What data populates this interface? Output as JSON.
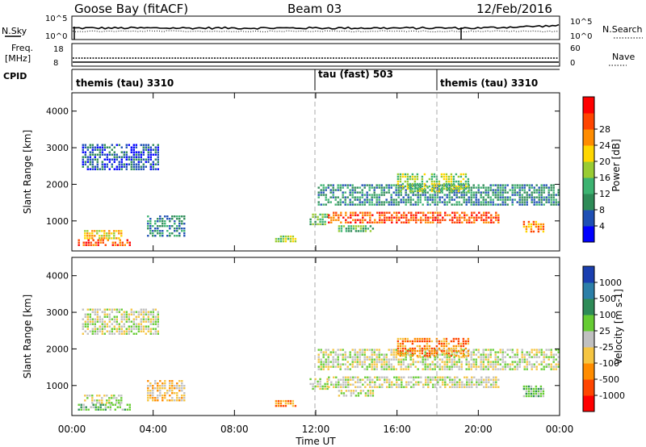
{
  "header": {
    "station": "Goose Bay (fitACF)",
    "beam": "Beam 03",
    "date": "12/Feb/2016"
  },
  "side_labels": {
    "nsky": "N.Sky",
    "freq_top": "Freq.",
    "freq_unit": "[MHz]",
    "cpid": "CPID",
    "nsearch": "N.Search",
    "nave": "Nave"
  },
  "noise_panel": {
    "left_ticks": [
      "10^5",
      "10^0"
    ],
    "right_ticks": [
      "10^5",
      "10^0"
    ]
  },
  "freq_panel": {
    "left_ticks": [
      "18",
      "8"
    ],
    "right_ticks": [
      "60",
      "0"
    ]
  },
  "cpid_segments": [
    {
      "label": "themis (tau) 3310",
      "start_hour": 0
    },
    {
      "label": "tau (fast) 503",
      "start_hour": 12
    },
    {
      "label": "themis (tau) 3310",
      "start_hour": 18
    }
  ],
  "x_axis": {
    "ticks": [
      "00:00",
      "04:00",
      "08:00",
      "12:00",
      "16:00",
      "20:00",
      "00:00"
    ],
    "label": "Time UT"
  },
  "power_panel": {
    "ylabel": "Slant Range [km]",
    "y_ticks": [
      "1000",
      "2000",
      "3000",
      "4000"
    ],
    "colorbar_label": "Power [dB]",
    "colorbar_ticks": [
      "4",
      "8",
      "12",
      "16",
      "20",
      "24",
      "28"
    ],
    "colors": [
      "#0000ff",
      "#1e4fb4",
      "#2e8b57",
      "#3cb371",
      "#99cc33",
      "#ffd700",
      "#ff8c00",
      "#ff4500",
      "#ff0000"
    ]
  },
  "velocity_panel": {
    "ylabel": "Slant Range [km]",
    "y_ticks": [
      "1000",
      "2000",
      "3000",
      "4000"
    ],
    "colorbar_label": "Velocity [m s-1]",
    "colorbar_ticks": [
      "1000",
      "500",
      "100",
      "25",
      "-25",
      "-100",
      "-500",
      "-1000"
    ],
    "colors": [
      "#1a3fb0",
      "#2c7fa8",
      "#2e8b57",
      "#66cc33",
      "#c0c0c0",
      "#f5c542",
      "#ff8c00",
      "#ff4500",
      "#ff0000"
    ]
  },
  "chart_data": {
    "type": "heatmap",
    "x_unit": "hour UT",
    "xlim": [
      0,
      24
    ],
    "ylim": [
      180,
      4500
    ],
    "power_bands": [
      {
        "start": 0.3,
        "end": 2.9,
        "range": [
          350,
          500
        ],
        "level": 7
      },
      {
        "start": 0.6,
        "end": 2.4,
        "range": [
          550,
          750
        ],
        "level": 5
      },
      {
        "start": 0.5,
        "end": 4.3,
        "range": [
          2400,
          3100
        ],
        "level": 1
      },
      {
        "start": 3.7,
        "end": 5.6,
        "range": [
          620,
          1150
        ],
        "level": 2
      },
      {
        "start": 10.0,
        "end": 11.0,
        "range": [
          450,
          600
        ],
        "level": 4
      },
      {
        "start": 11.7,
        "end": 12.6,
        "range": [
          900,
          1200
        ],
        "level": 3
      },
      {
        "start": 12.1,
        "end": 24.0,
        "range": [
          1450,
          2000
        ],
        "level": 2
      },
      {
        "start": 12.6,
        "end": 21.0,
        "range": [
          950,
          1250
        ],
        "level": 7
      },
      {
        "start": 13.1,
        "end": 14.8,
        "range": [
          700,
          880
        ],
        "level": 3
      },
      {
        "start": 16.0,
        "end": 19.5,
        "range": [
          1800,
          2300
        ],
        "level": 4
      },
      {
        "start": 22.2,
        "end": 23.2,
        "range": [
          700,
          1000
        ],
        "level": 6
      }
    ],
    "velocity_bands": [
      {
        "start": 0.3,
        "end": 2.9,
        "range": [
          350,
          500
        ],
        "level": 3
      },
      {
        "start": 0.6,
        "end": 2.4,
        "range": [
          550,
          750
        ],
        "level": 4
      },
      {
        "start": 0.5,
        "end": 4.3,
        "range": [
          2400,
          3100
        ],
        "level": 4
      },
      {
        "start": 3.7,
        "end": 5.6,
        "range": [
          620,
          1150
        ],
        "level": 5
      },
      {
        "start": 10.0,
        "end": 11.0,
        "range": [
          450,
          600
        ],
        "level": 6
      },
      {
        "start": 11.7,
        "end": 12.6,
        "range": [
          900,
          1200
        ],
        "level": 4
      },
      {
        "start": 12.1,
        "end": 24.0,
        "range": [
          1450,
          2000
        ],
        "level": 4
      },
      {
        "start": 12.6,
        "end": 21.0,
        "range": [
          950,
          1250
        ],
        "level": 4
      },
      {
        "start": 13.1,
        "end": 14.8,
        "range": [
          700,
          880
        ],
        "level": 4
      },
      {
        "start": 16.0,
        "end": 19.5,
        "range": [
          1800,
          2300
        ],
        "level": 6
      },
      {
        "start": 22.2,
        "end": 23.2,
        "range": [
          700,
          1000
        ],
        "level": 3
      }
    ]
  }
}
